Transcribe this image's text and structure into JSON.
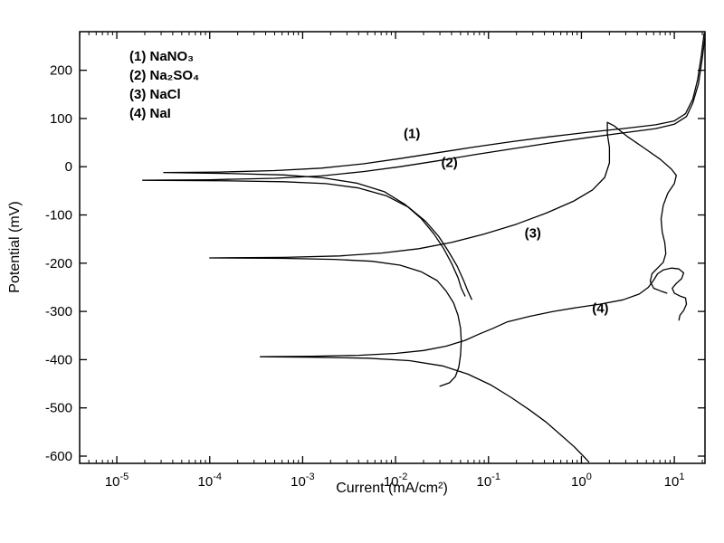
{
  "chart_data": {
    "type": "line",
    "title": "",
    "xlabel": "Current (mA/cm²)",
    "ylabel": "Potential (mV)",
    "x_scale": "log",
    "xlim_log10": [
      -5.4,
      1.33
    ],
    "ylim": [
      -615,
      280
    ],
    "x_tick_exponents": [
      -5,
      -4,
      -3,
      -2,
      -1,
      0,
      1
    ],
    "y_ticks": [
      200,
      100,
      0,
      -100,
      -200,
      -300,
      -400,
      -500,
      -600
    ],
    "grid": false,
    "line_color": "#000000",
    "background": "#ffffff",
    "legend": [
      "(1) NaNO₃",
      "(2) Na₂SO₄",
      "(3) NaCl",
      "(4) NaI"
    ],
    "annotations": [
      {
        "label": "(1)",
        "x": 0.015,
        "y": 68
      },
      {
        "label": "(2)",
        "x": 0.038,
        "y": 8
      },
      {
        "label": "(3)",
        "x": 0.3,
        "y": -138
      },
      {
        "label": "(4)",
        "x": 1.6,
        "y": -294
      }
    ],
    "series": [
      {
        "name": "NaNO3",
        "label": "(1)",
        "corrosion_potential_mV": -12,
        "points": [
          [
            0.056,
            -268
          ],
          [
            0.051,
            -252
          ],
          [
            0.047,
            -230
          ],
          [
            0.04,
            -200
          ],
          [
            0.033,
            -170
          ],
          [
            0.026,
            -140
          ],
          [
            0.019,
            -108
          ],
          [
            0.0126,
            -78
          ],
          [
            0.0076,
            -52
          ],
          [
            0.0038,
            -34
          ],
          [
            0.00166,
            -23
          ],
          [
            0.00063,
            -17
          ],
          [
            0.00016,
            -14
          ],
          [
            3.2e-05,
            -12
          ],
          [
            0.000126,
            -11
          ],
          [
            0.0005,
            -8
          ],
          [
            0.00158,
            -3
          ],
          [
            0.0045,
            6
          ],
          [
            0.0112,
            17
          ],
          [
            0.028,
            29
          ],
          [
            0.071,
            41
          ],
          [
            0.178,
            52
          ],
          [
            0.45,
            62
          ],
          [
            1.12,
            71
          ],
          [
            2.8,
            79
          ],
          [
            6.3,
            87
          ],
          [
            10,
            95
          ],
          [
            13.2,
            110
          ],
          [
            15.8,
            140
          ],
          [
            17.8,
            180
          ],
          [
            19.5,
            230
          ],
          [
            20.9,
            276
          ]
        ]
      },
      {
        "name": "Na2SO4",
        "label": "(2)",
        "corrosion_potential_mV": -28,
        "points": [
          [
            0.066,
            -275
          ],
          [
            0.06,
            -258
          ],
          [
            0.054,
            -236
          ],
          [
            0.046,
            -206
          ],
          [
            0.037,
            -175
          ],
          [
            0.029,
            -144
          ],
          [
            0.021,
            -113
          ],
          [
            0.0138,
            -84
          ],
          [
            0.0079,
            -60
          ],
          [
            0.004,
            -44
          ],
          [
            0.00178,
            -35
          ],
          [
            0.00063,
            -31
          ],
          [
            0.000126,
            -29
          ],
          [
            1.9e-05,
            -28
          ],
          [
            0.0001,
            -27
          ],
          [
            0.0005,
            -24
          ],
          [
            0.00158,
            -19
          ],
          [
            0.0045,
            -10
          ],
          [
            0.0112,
            0
          ],
          [
            0.028,
            12
          ],
          [
            0.071,
            25
          ],
          [
            0.178,
            37
          ],
          [
            0.45,
            49
          ],
          [
            1.12,
            60
          ],
          [
            2.8,
            70
          ],
          [
            6.3,
            79
          ],
          [
            10,
            88
          ],
          [
            13.5,
            104
          ],
          [
            15.8,
            132
          ],
          [
            18.2,
            172
          ],
          [
            20,
            225
          ],
          [
            21.4,
            270
          ]
        ]
      },
      {
        "name": "NaCl",
        "label": "(3)",
        "corrosion_potential_mV": -189,
        "points": [
          [
            0.03,
            -455
          ],
          [
            0.038,
            -448
          ],
          [
            0.044,
            -435
          ],
          [
            0.048,
            -415
          ],
          [
            0.05,
            -390
          ],
          [
            0.051,
            -362
          ],
          [
            0.05,
            -335
          ],
          [
            0.047,
            -308
          ],
          [
            0.042,
            -282
          ],
          [
            0.035,
            -258
          ],
          [
            0.028,
            -236
          ],
          [
            0.019,
            -218
          ],
          [
            0.0112,
            -204
          ],
          [
            0.0056,
            -196
          ],
          [
            0.0022,
            -192
          ],
          [
            0.00063,
            -190
          ],
          [
            0.0001,
            -189
          ],
          [
            0.00063,
            -188
          ],
          [
            0.0025,
            -185
          ],
          [
            0.0071,
            -179
          ],
          [
            0.0178,
            -170
          ],
          [
            0.04,
            -157
          ],
          [
            0.089,
            -140
          ],
          [
            0.2,
            -119
          ],
          [
            0.42,
            -96
          ],
          [
            0.83,
            -71
          ],
          [
            1.32,
            -48
          ],
          [
            1.78,
            -22
          ],
          [
            2.0,
            8
          ],
          [
            2.0,
            40
          ],
          [
            1.9,
            68
          ],
          [
            1.9,
            92
          ],
          [
            2.24,
            85
          ],
          [
            3.16,
            62
          ],
          [
            4.8,
            38
          ],
          [
            7.1,
            15
          ],
          [
            9.3,
            -5
          ],
          [
            10.5,
            -18
          ],
          [
            10,
            -35
          ],
          [
            8.5,
            -55
          ],
          [
            7.6,
            -80
          ],
          [
            7.2,
            -108
          ],
          [
            7.4,
            -135
          ],
          [
            7.9,
            -158
          ],
          [
            8.1,
            -180
          ],
          [
            7.6,
            -198
          ],
          [
            6.6,
            -210
          ],
          [
            5.75,
            -222
          ],
          [
            5.5,
            -238
          ],
          [
            6.0,
            -252
          ],
          [
            7.2,
            -258
          ],
          [
            8.3,
            -262
          ]
        ]
      },
      {
        "name": "NaI",
        "label": "(4)",
        "corrosion_potential_mV": -394,
        "points": [
          [
            1.2,
            -612
          ],
          [
            1.05,
            -600
          ],
          [
            0.83,
            -580
          ],
          [
            0.6,
            -556
          ],
          [
            0.42,
            -530
          ],
          [
            0.275,
            -504
          ],
          [
            0.174,
            -478
          ],
          [
            0.105,
            -452
          ],
          [
            0.06,
            -430
          ],
          [
            0.032,
            -413
          ],
          [
            0.0141,
            -402
          ],
          [
            0.005,
            -397
          ],
          [
            0.00126,
            -395
          ],
          [
            0.00035,
            -394
          ],
          [
            0.00126,
            -393
          ],
          [
            0.004,
            -391
          ],
          [
            0.01,
            -387
          ],
          [
            0.02,
            -381
          ],
          [
            0.035,
            -372
          ],
          [
            0.056,
            -360
          ],
          [
            0.079,
            -347
          ],
          [
            0.112,
            -335
          ],
          [
            0.158,
            -322
          ],
          [
            0.282,
            -310
          ],
          [
            0.5,
            -300
          ],
          [
            0.89,
            -292
          ],
          [
            1.58,
            -285
          ],
          [
            2.8,
            -276
          ],
          [
            4.2,
            -264
          ],
          [
            5.25,
            -250
          ],
          [
            6.0,
            -235
          ],
          [
            6.6,
            -222
          ],
          [
            7.6,
            -214
          ],
          [
            9.3,
            -210
          ],
          [
            11.2,
            -212
          ],
          [
            12.6,
            -220
          ],
          [
            12,
            -232
          ],
          [
            10.5,
            -242
          ],
          [
            9.5,
            -252
          ],
          [
            10,
            -262
          ],
          [
            11.5,
            -268
          ],
          [
            13.2,
            -272
          ],
          [
            13.5,
            -285
          ],
          [
            12.6,
            -298
          ],
          [
            11.5,
            -308
          ],
          [
            11.2,
            -318
          ]
        ]
      }
    ]
  }
}
